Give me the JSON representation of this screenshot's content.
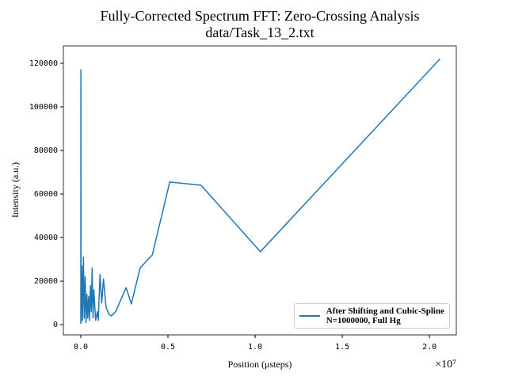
{
  "chart_data": {
    "type": "line",
    "title": "Fully-Corrected Spectrum FFT: Zero-Crossing Analysis",
    "subtitle": "data/Task_13_2.txt",
    "x_label": "Position (μsteps)",
    "y_label": "Intensity (a.u.)",
    "x_offset_label": "×10⁷",
    "x": [
      0,
      5000,
      15000,
      60000,
      100000,
      150000,
      200000,
      250000,
      300000,
      350000,
      400000,
      450000,
      500000,
      550000,
      600000,
      650000,
      700000,
      750000,
      800000,
      850000,
      950000,
      1000000,
      1100000,
      1200000,
      1300000,
      1450000,
      1600000,
      1750000,
      2000000,
      2600000,
      2900000,
      3400000,
      4100000,
      5100000,
      6900000,
      10300000,
      20600000
    ],
    "series": [
      {
        "name": "After Shifting and Cubic-Spline\nN=1000000, Full Hg",
        "color": "#1f77b4",
        "values": [
          500,
          117000,
          1000,
          27000,
          2000,
          31000,
          3000,
          22000,
          1000,
          14000,
          3000,
          13000,
          2000,
          18000,
          6000,
          26000,
          3000,
          16000,
          9000,
          2000,
          6000,
          2000,
          23000,
          10000,
          21000,
          8000,
          5000,
          4000,
          6000,
          17000,
          9500,
          26000,
          32000,
          65500,
          64000,
          33500,
          122000
        ]
      }
    ],
    "xlim": [
      -1000000,
      21540000
    ],
    "ylim": [
      -4700,
      128000
    ],
    "xticks": [
      {
        "value": 0,
        "label": "0.0"
      },
      {
        "value": 5000000,
        "label": "0.5"
      },
      {
        "value": 10000000,
        "label": "1.0"
      },
      {
        "value": 15000000,
        "label": "1.5"
      },
      {
        "value": 20000000,
        "label": "2.0"
      }
    ],
    "yticks": [
      0,
      20000,
      40000,
      60000,
      80000,
      100000,
      120000
    ],
    "legend_loc": "lower right",
    "grid": false
  }
}
